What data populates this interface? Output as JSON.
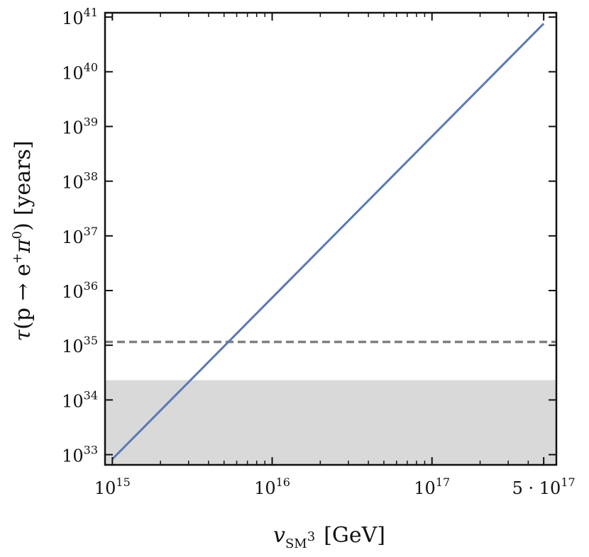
{
  "chart_data": {
    "type": "line",
    "title": "",
    "xlabel": {
      "var": "v",
      "sub": "SM",
      "sub_sup": "3",
      "unit": "[GeV]"
    },
    "ylabel": {
      "tau": "τ",
      "process": "(p → e",
      "plus": "+",
      "pi": "π",
      "zero": "0",
      "close": ")",
      "unit": "[years]"
    },
    "xscale": "log",
    "yscale": "log",
    "xlim": [
      900000000000000.0,
      6e+17
    ],
    "ylim": [
      6.5e+32,
      1.2e+41
    ],
    "x_ticks": [
      {
        "value": 1000000000000000.0,
        "base": "10",
        "exp": "15"
      },
      {
        "value": 1e+16,
        "base": "10",
        "exp": "16"
      },
      {
        "value": 1e+17,
        "base": "10",
        "exp": "17"
      },
      {
        "value": 5e+17,
        "base": "5 · 10",
        "exp": "17"
      }
    ],
    "y_ticks": [
      {
        "value": 1e+33,
        "base": "10",
        "exp": "33"
      },
      {
        "value": 1e+34,
        "base": "10",
        "exp": "34"
      },
      {
        "value": 1e+35,
        "base": "10",
        "exp": "35"
      },
      {
        "value": 1e+36,
        "base": "10",
        "exp": "36"
      },
      {
        "value": 1e+37,
        "base": "10",
        "exp": "37"
      },
      {
        "value": 1e+38,
        "base": "10",
        "exp": "38"
      },
      {
        "value": 1e+39,
        "base": "10",
        "exp": "39"
      },
      {
        "value": 1e+40,
        "base": "10",
        "exp": "40"
      },
      {
        "value": 1e+41,
        "base": "10",
        "exp": "41"
      }
    ],
    "series": [
      {
        "x": [
          1000000000000000.0,
          5e+17
        ],
        "y": [
          8.3e+32,
          7.6e+40
        ],
        "color": "#5a7ab5"
      }
    ],
    "reference_line": {
      "y": 1.15e+35,
      "color": "#808080",
      "style": "dashed"
    },
    "excluded_region": {
      "y_max": 2.3e+34,
      "color": "#d9d9d9"
    },
    "grid": false,
    "legend": "none"
  }
}
